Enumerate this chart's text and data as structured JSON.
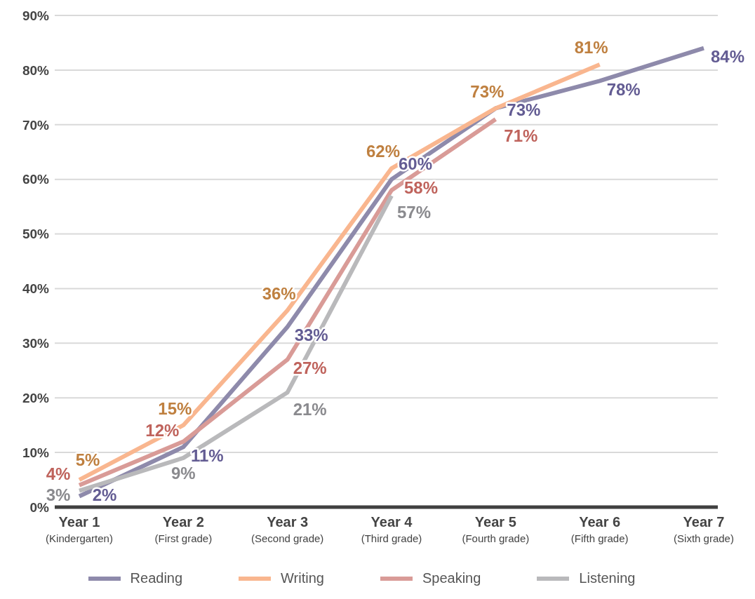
{
  "chart_data": {
    "type": "line",
    "categories": [
      "Year 1\n(Kindergarten)",
      "Year 2\n(First grade)",
      "Year 3\n(Second grade)",
      "Year 4\n(Third grade)",
      "Year 5\n(Fourth grade)",
      "Year 6\n(Fifth grade)",
      "Year 7\n(Sixth grade)"
    ],
    "series": [
      {
        "name": "Reading",
        "color": "#8e8aab",
        "values": [
          2,
          11,
          33,
          60,
          73,
          78,
          84
        ],
        "value_labels": [
          "2%",
          "11%",
          "33%",
          "60%",
          "73%",
          "78%",
          "84%"
        ]
      },
      {
        "name": "Writing",
        "color": "#f9b68f",
        "values": [
          5,
          15,
          36,
          62,
          73,
          81,
          null
        ],
        "value_labels": [
          "5%",
          "15%",
          "36%",
          "62%",
          "73%",
          "81%",
          null
        ]
      },
      {
        "name": "Speaking",
        "color": "#d99b97",
        "values": [
          4,
          12,
          27,
          58,
          71,
          null,
          null
        ],
        "value_labels": [
          "4%",
          "12%",
          "27%",
          "58%",
          "71%",
          null,
          null
        ]
      },
      {
        "name": "Listening",
        "color": "#b9b9bb",
        "values": [
          3,
          9,
          21,
          57,
          null,
          null,
          null
        ],
        "value_labels": [
          "3%",
          "9%",
          "21%",
          "57%",
          null,
          null,
          null
        ]
      }
    ],
    "ylim": [
      0,
      90
    ],
    "yticks": [
      {
        "value": 0,
        "label": "0%"
      },
      {
        "value": 10,
        "label": "10%"
      },
      {
        "value": 20,
        "label": "20%"
      },
      {
        "value": 30,
        "label": "30%"
      },
      {
        "value": 40,
        "label": "40%"
      },
      {
        "value": 50,
        "label": "50%"
      },
      {
        "value": 60,
        "label": "60%"
      },
      {
        "value": 70,
        "label": "70%"
      },
      {
        "value": 80,
        "label": "80%"
      },
      {
        "value": 90,
        "label": "90%"
      }
    ],
    "grid": "y",
    "legend": "bottom",
    "marker": "none",
    "line_style": "solid"
  }
}
